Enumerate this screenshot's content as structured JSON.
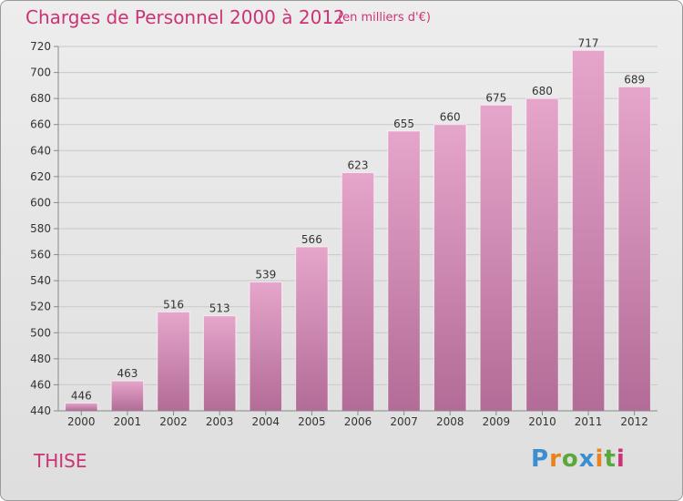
{
  "header": {
    "title": "Charges de Personnel 2000 à 2012",
    "unit": "(en milliers d'€)"
  },
  "commune": "THISE",
  "logo": {
    "letters": [
      "P",
      "r",
      "o",
      "x",
      "i",
      "t",
      "i"
    ],
    "colors": [
      "#3b8fd0",
      "#e8821e",
      "#5aa83c",
      "#3b8fd0",
      "#e8821e",
      "#5aa83c",
      "#cc3377"
    ]
  },
  "colors": {
    "bar_top": "#e6a5cb",
    "bar_bottom": "#b26c97",
    "text": "#cc3377"
  },
  "chart_data": {
    "type": "bar",
    "title": "Charges de Personnel 2000 à 2012",
    "subtitle": "(en milliers d'€)",
    "categories": [
      "2000",
      "2001",
      "2002",
      "2003",
      "2004",
      "2005",
      "2006",
      "2007",
      "2008",
      "2009",
      "2010",
      "2011",
      "2012"
    ],
    "values": [
      446,
      463,
      516,
      513,
      539,
      566,
      623,
      655,
      660,
      675,
      680,
      717,
      689
    ],
    "ylim": [
      440,
      720
    ],
    "yticks": [
      440,
      460,
      480,
      500,
      520,
      540,
      560,
      580,
      600,
      620,
      640,
      660,
      680,
      700,
      720
    ],
    "grid": true,
    "data_labels": true
  }
}
